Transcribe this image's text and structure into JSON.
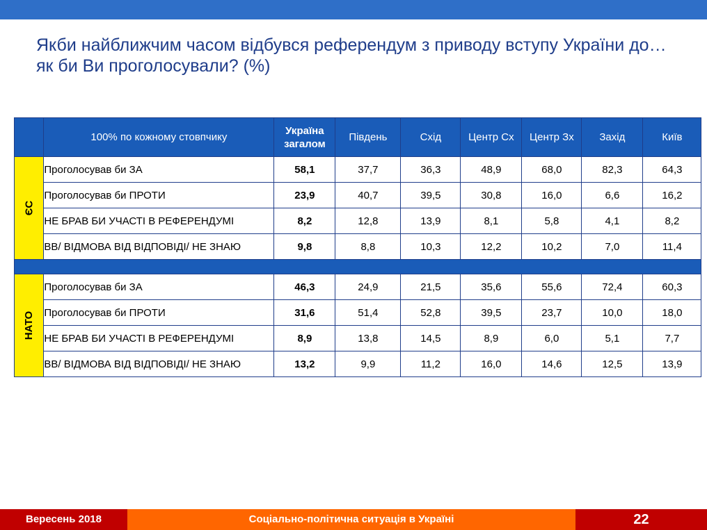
{
  "title": {
    "line1": "Якби найближчим часом відбувся референдум з приводу вступу України до…",
    "line2": "як би Ви проголосували? (%)"
  },
  "table": {
    "header": {
      "label": "100% по кожному стовпчику",
      "total_line1": "Україна",
      "total_line2": "загалом",
      "regions": [
        "Південь",
        "Схід",
        "Центр Сх",
        "Центр Зх",
        "Захід",
        "Київ"
      ]
    },
    "groups": [
      {
        "name": "ЄС",
        "rows": [
          {
            "label": "Проголосував би ЗА",
            "total": "58,1",
            "values": [
              "37,7",
              "36,3",
              "48,9",
              "68,0",
              "82,3",
              "64,3"
            ]
          },
          {
            "label": "Проголосував би ПРОТИ",
            "total": "23,9",
            "values": [
              "40,7",
              "39,5",
              "30,8",
              "16,0",
              "6,6",
              "16,2"
            ]
          },
          {
            "label": "НЕ БРАВ БИ УЧАСТІ В РЕФЕРЕНДУМІ",
            "total": "8,2",
            "values": [
              "12,8",
              "13,9",
              "8,1",
              "5,8",
              "4,1",
              "8,2"
            ]
          },
          {
            "label": "ВВ/ ВІДМОВА ВІД ВІДПОВІДІ/ НЕ ЗНАЮ",
            "total": "9,8",
            "values": [
              "8,8",
              "10,3",
              "12,2",
              "10,2",
              "7,0",
              "11,4"
            ]
          }
        ]
      },
      {
        "name": "НАТО",
        "rows": [
          {
            "label": "Проголосував би ЗА",
            "total": "46,3",
            "values": [
              "24,9",
              "21,5",
              "35,6",
              "55,6",
              "72,4",
              "60,3"
            ]
          },
          {
            "label": "Проголосував би ПРОТИ",
            "total": "31,6",
            "values": [
              "51,4",
              "52,8",
              "39,5",
              "23,7",
              "10,0",
              "18,0"
            ]
          },
          {
            "label": "НЕ БРАВ БИ УЧАСТІ В РЕФЕРЕНДУМІ",
            "total": "8,9",
            "values": [
              "13,8",
              "14,5",
              "8,9",
              "6,0",
              "5,1",
              "7,7"
            ]
          },
          {
            "label": "ВВ/ ВІДМОВА ВІД ВІДПОВІДІ/ НЕ ЗНАЮ",
            "total": "13,2",
            "values": [
              "9,9",
              "11,2",
              "16,0",
              "14,6",
              "12,5",
              "13,9"
            ]
          }
        ]
      }
    ]
  },
  "footer": {
    "date": "Вересень 2018",
    "subtitle": "Соціально-політична ситуація в Україні",
    "page": "22"
  },
  "colors": {
    "top_bar": "#2f6fc8",
    "title_text": "#1f3d8a",
    "header_bg": "#1a5cb8",
    "group_bg": "#ffee00",
    "footer_red": "#c00000",
    "footer_orange": "#ff6600"
  }
}
